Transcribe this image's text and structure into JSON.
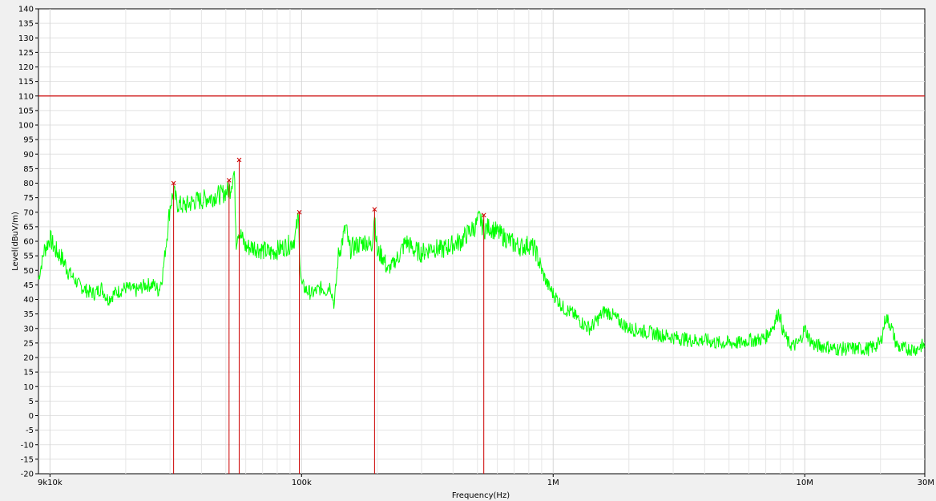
{
  "chart_data": {
    "type": "line",
    "xlabel": "Frequency(Hz)",
    "ylabel": "Level(dBuV/m)",
    "xscale": "log",
    "xlim": [
      9000,
      30000000
    ],
    "ylim": [
      -20,
      140
    ],
    "grid": true,
    "x_ticks": [
      {
        "value": 10000,
        "label": "9k10k"
      },
      {
        "value": 100000,
        "label": "100k"
      },
      {
        "value": 1000000,
        "label": "1M"
      },
      {
        "value": 10000000,
        "label": "10M"
      },
      {
        "value": 30000000,
        "label": "30M"
      }
    ],
    "y_ticks": [
      -20,
      -15,
      -10,
      -5,
      0,
      5,
      10,
      15,
      20,
      25,
      30,
      35,
      40,
      45,
      50,
      55,
      60,
      65,
      70,
      75,
      80,
      85,
      90,
      95,
      100,
      105,
      110,
      115,
      120,
      125,
      130,
      135,
      140
    ],
    "colors": {
      "series": "#00ff00",
      "limit": "#cc0000",
      "marker": "#cc0000"
    },
    "series": [
      {
        "values": [
          [
            9000,
            47
          ],
          [
            9500,
            57
          ],
          [
            10000,
            61
          ],
          [
            10500,
            57
          ],
          [
            11000,
            55
          ],
          [
            12000,
            49
          ],
          [
            13000,
            45
          ],
          [
            14000,
            43
          ],
          [
            15000,
            42
          ],
          [
            16000,
            44
          ],
          [
            17000,
            40
          ],
          [
            18000,
            42
          ],
          [
            19000,
            43
          ],
          [
            20000,
            44
          ],
          [
            22000,
            43
          ],
          [
            24000,
            45
          ],
          [
            26000,
            45
          ],
          [
            27000,
            43
          ],
          [
            28000,
            48
          ],
          [
            29000,
            60
          ],
          [
            30000,
            72
          ],
          [
            31000,
            77
          ],
          [
            32000,
            73
          ],
          [
            34000,
            72
          ],
          [
            36000,
            73
          ],
          [
            38000,
            74
          ],
          [
            40000,
            74
          ],
          [
            42000,
            75
          ],
          [
            44000,
            75
          ],
          [
            46000,
            76
          ],
          [
            48000,
            76
          ],
          [
            50000,
            77
          ],
          [
            52000,
            78
          ],
          [
            54000,
            84
          ],
          [
            55000,
            60
          ],
          [
            56000,
            64
          ],
          [
            58000,
            61
          ],
          [
            60000,
            58
          ],
          [
            65000,
            58
          ],
          [
            70000,
            57
          ],
          [
            75000,
            56
          ],
          [
            80000,
            57
          ],
          [
            85000,
            58
          ],
          [
            90000,
            59
          ],
          [
            94000,
            61
          ],
          [
            97000,
            68
          ],
          [
            99000,
            50
          ],
          [
            100000,
            45
          ],
          [
            105000,
            43
          ],
          [
            110000,
            42
          ],
          [
            115000,
            43
          ],
          [
            120000,
            44
          ],
          [
            125000,
            43
          ],
          [
            130000,
            45
          ],
          [
            135000,
            38
          ],
          [
            140000,
            55
          ],
          [
            145000,
            60
          ],
          [
            150000,
            65
          ],
          [
            155000,
            57
          ],
          [
            160000,
            58
          ],
          [
            170000,
            59
          ],
          [
            180000,
            60
          ],
          [
            190000,
            58
          ],
          [
            195000,
            70
          ],
          [
            200000,
            56
          ],
          [
            210000,
            55
          ],
          [
            220000,
            50
          ],
          [
            240000,
            54
          ],
          [
            260000,
            60
          ],
          [
            280000,
            57
          ],
          [
            300000,
            56
          ],
          [
            330000,
            58
          ],
          [
            360000,
            57
          ],
          [
            400000,
            59
          ],
          [
            430000,
            60
          ],
          [
            460000,
            63
          ],
          [
            490000,
            65
          ],
          [
            510000,
            68
          ],
          [
            530000,
            64
          ],
          [
            560000,
            65
          ],
          [
            600000,
            63
          ],
          [
            650000,
            61
          ],
          [
            700000,
            59
          ],
          [
            750000,
            58
          ],
          [
            800000,
            59
          ],
          [
            850000,
            57
          ],
          [
            900000,
            50
          ],
          [
            950000,
            45
          ],
          [
            1000000,
            42
          ],
          [
            1100000,
            37
          ],
          [
            1200000,
            35
          ],
          [
            1300000,
            32
          ],
          [
            1400000,
            30
          ],
          [
            1500000,
            33
          ],
          [
            1600000,
            36
          ],
          [
            1700000,
            35
          ],
          [
            1800000,
            33
          ],
          [
            2000000,
            30
          ],
          [
            2300000,
            29
          ],
          [
            2600000,
            28
          ],
          [
            3000000,
            27
          ],
          [
            3500000,
            26
          ],
          [
            4000000,
            26
          ],
          [
            4500000,
            25
          ],
          [
            5000000,
            25
          ],
          [
            5500000,
            25
          ],
          [
            6000000,
            26
          ],
          [
            6500000,
            26
          ],
          [
            7000000,
            27
          ],
          [
            7500000,
            31
          ],
          [
            7900000,
            36
          ],
          [
            8200000,
            29
          ],
          [
            8600000,
            25
          ],
          [
            9000000,
            24
          ],
          [
            9500000,
            25
          ],
          [
            10000000,
            30
          ],
          [
            10500000,
            26
          ],
          [
            11000000,
            24
          ],
          [
            12000000,
            24
          ],
          [
            13000000,
            23
          ],
          [
            14000000,
            23
          ],
          [
            15000000,
            23
          ],
          [
            16000000,
            23
          ],
          [
            17000000,
            23
          ],
          [
            18000000,
            23
          ],
          [
            19000000,
            24
          ],
          [
            20000000,
            25
          ],
          [
            21000000,
            34
          ],
          [
            22000000,
            31
          ],
          [
            23000000,
            25
          ],
          [
            24000000,
            23
          ],
          [
            25000000,
            23
          ],
          [
            26000000,
            23
          ],
          [
            27000000,
            23
          ],
          [
            28000000,
            23
          ],
          [
            29000000,
            24
          ],
          [
            30000000,
            24
          ]
        ]
      }
    ],
    "limit_line": {
      "value": 110
    },
    "peaks": [
      {
        "x": 31000,
        "y": 80
      },
      {
        "x": 51500,
        "y": 81
      },
      {
        "x": 56500,
        "y": 88
      },
      {
        "x": 98000,
        "y": 70
      },
      {
        "x": 195000,
        "y": 71
      },
      {
        "x": 530000,
        "y": 69
      }
    ]
  }
}
